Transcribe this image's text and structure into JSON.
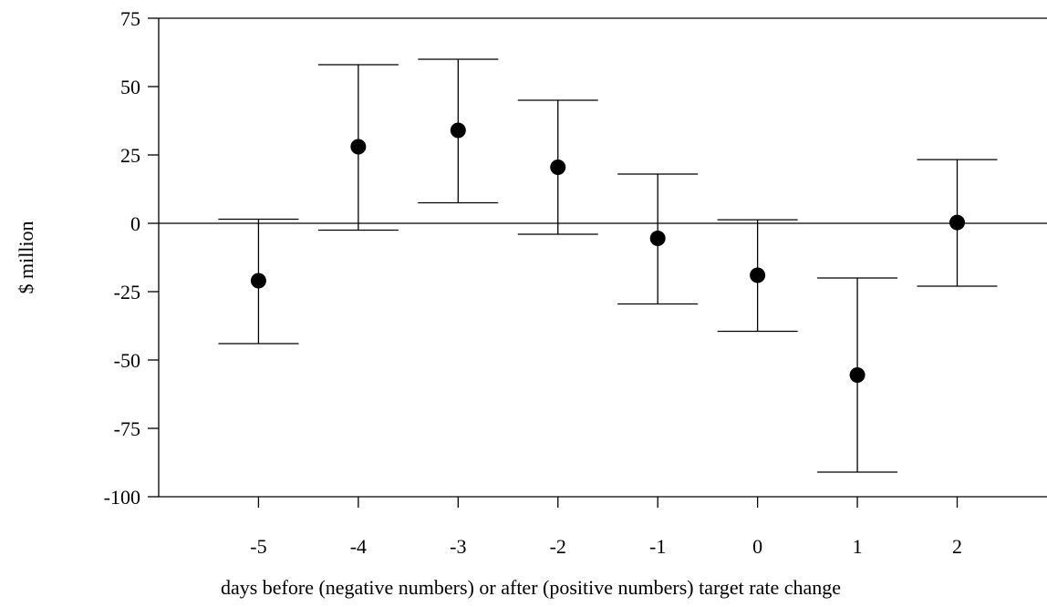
{
  "chart_data": {
    "type": "scatter",
    "title": "",
    "xlabel": "days before (negative numbers) or after (positive numbers) target rate change",
    "ylabel": "$ million",
    "ylim": [
      -100,
      75
    ],
    "xlim": [
      -6,
      2.9
    ],
    "yticks": [
      75,
      50,
      25,
      0,
      -25,
      -50,
      -75,
      -100
    ],
    "ytick_labels": [
      "75",
      "50",
      "25",
      "0",
      "-25",
      "-50",
      "-75",
      "-100"
    ],
    "x": [
      -5,
      -4,
      -3,
      -2,
      -1,
      0,
      1,
      2
    ],
    "xtick_labels": [
      "-5",
      "-4",
      "-3",
      "-2",
      "-1",
      "0",
      "1",
      "2"
    ],
    "series": [
      {
        "values": [
          -21,
          28,
          34,
          20.5,
          -5.5,
          -19,
          -55.5,
          0.3
        ],
        "upper": [
          1.5,
          58,
          60,
          45,
          18,
          1.3,
          -20,
          23.3
        ],
        "lower": [
          -44,
          -2.5,
          7.5,
          -4,
          -29.5,
          -39.5,
          -91,
          -23
        ]
      }
    ],
    "zero_line": true,
    "grid": false,
    "legend": false
  }
}
